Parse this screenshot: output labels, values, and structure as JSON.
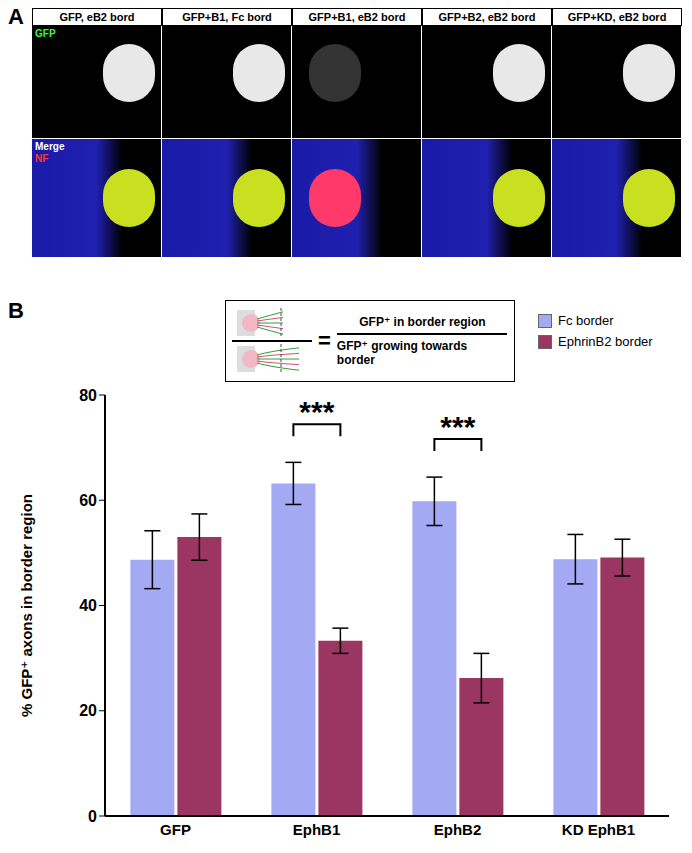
{
  "panel_a": {
    "label": "A",
    "columns": [
      "GFP, eB2 bord",
      "GFP+B1, Fc bord",
      "GFP+B1, eB2 bord",
      "GFP+B2, eB2 bord",
      "GFP+KD, eB2 bord"
    ],
    "row_labels": [
      [
        "GFP"
      ],
      [
        "Merge",
        "NF"
      ]
    ]
  },
  "panel_b": {
    "label": "B"
  },
  "chart_data": {
    "type": "bar",
    "ylabel": "% GFP⁺ axons in border region",
    "categories": [
      "GFP",
      "EphB1",
      "EphB2",
      "KD EphB1"
    ],
    "series": [
      {
        "name": "Fc border",
        "color": "#a3a9f2",
        "values": [
          48.7,
          63.2,
          59.8,
          48.8
        ],
        "errors": [
          5.5,
          4.0,
          4.6,
          4.7
        ]
      },
      {
        "name": "EphrinB2 border",
        "color": "#9b3562",
        "values": [
          53.0,
          33.3,
          26.2,
          49.1
        ],
        "errors": [
          4.4,
          2.4,
          4.7,
          3.5
        ]
      }
    ],
    "ylim": [
      0,
      80
    ],
    "yticks": [
      0,
      20,
      40,
      60,
      80
    ],
    "grid": false,
    "legend": "upper right",
    "annotations": {
      "significance": [
        {
          "category": "EphB1",
          "text": "***"
        },
        {
          "category": "EphB2",
          "text": "***"
        }
      ],
      "formula": {
        "symbol": "=",
        "numerator": "GFP⁺ in border region",
        "denominator": "GFP⁺ growing towards border"
      }
    }
  }
}
